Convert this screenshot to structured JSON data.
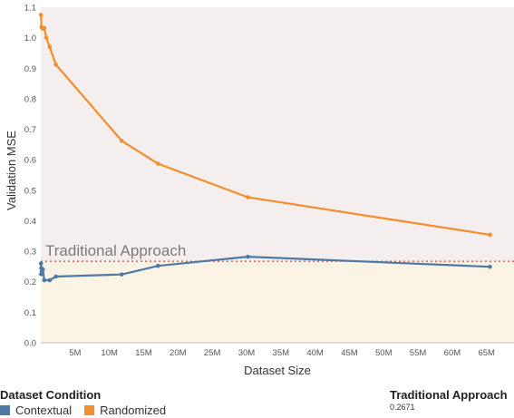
{
  "chart_data": {
    "type": "line",
    "ylabel": "Validation MSE",
    "xlabel": "Dataset Size",
    "xlim": [
      0,
      69000000
    ],
    "ylim": [
      0,
      1.1
    ],
    "yticks": [
      "0.0",
      "0.1",
      "0.2",
      "0.3",
      "0.4",
      "0.5",
      "0.6",
      "0.7",
      "0.8",
      "0.9",
      "1.0",
      "1.1"
    ],
    "xticks": [
      {
        "value": 5000000,
        "label": "5M"
      },
      {
        "value": 10000000,
        "label": "10M"
      },
      {
        "value": 15000000,
        "label": "15M"
      },
      {
        "value": 20000000,
        "label": "20M"
      },
      {
        "value": 25000000,
        "label": "25M"
      },
      {
        "value": 30000000,
        "label": "30M"
      },
      {
        "value": 35000000,
        "label": "35M"
      },
      {
        "value": 40000000,
        "label": "40M"
      },
      {
        "value": 45000000,
        "label": "45M"
      },
      {
        "value": 50000000,
        "label": "50M"
      },
      {
        "value": 55000000,
        "label": "55M"
      },
      {
        "value": 60000000,
        "label": "60M"
      },
      {
        "value": 65000000,
        "label": "65M"
      }
    ],
    "series": [
      {
        "name": "Contextual",
        "color": "#4e79a7",
        "points": [
          [
            20000,
            0.26
          ],
          [
            40000,
            0.225
          ],
          [
            80000,
            0.245
          ],
          [
            150000,
            0.235
          ],
          [
            300000,
            0.24
          ],
          [
            500000,
            0.205
          ],
          [
            1300000,
            0.205
          ],
          [
            2200000,
            0.217
          ],
          [
            11800000,
            0.224
          ],
          [
            17100000,
            0.252
          ],
          [
            30200000,
            0.282
          ],
          [
            65500000,
            0.249
          ]
        ]
      },
      {
        "name": "Randomized",
        "color": "#f28e2b",
        "points": [
          [
            20000,
            1.075
          ],
          [
            100000,
            1.035
          ],
          [
            250000,
            1.03
          ],
          [
            500000,
            1.032
          ],
          [
            800000,
            1.0
          ],
          [
            1300000,
            0.97
          ],
          [
            2200000,
            0.912
          ],
          [
            11800000,
            0.662
          ],
          [
            17100000,
            0.587
          ],
          [
            30200000,
            0.477
          ],
          [
            65500000,
            0.354
          ]
        ]
      }
    ],
    "reference_line": {
      "label": "Traditional Approach",
      "value": 0.2671,
      "color": "#d9463b"
    },
    "background_bands": [
      {
        "from": 0.2671,
        "to": 1.1,
        "color": "#f4efee"
      },
      {
        "from": 0,
        "to": 0.2671,
        "color": "#fbf3e4"
      }
    ],
    "grid": false,
    "legend_position": "bottom-left"
  },
  "legend": {
    "title": "Dataset Condition",
    "items": [
      {
        "label": "Contextual",
        "color": "#4e79a7"
      },
      {
        "label": "Randomized",
        "color": "#f28e2b"
      }
    ]
  },
  "reference_panel": {
    "title": "Traditional Approach",
    "value": "0.2671"
  }
}
